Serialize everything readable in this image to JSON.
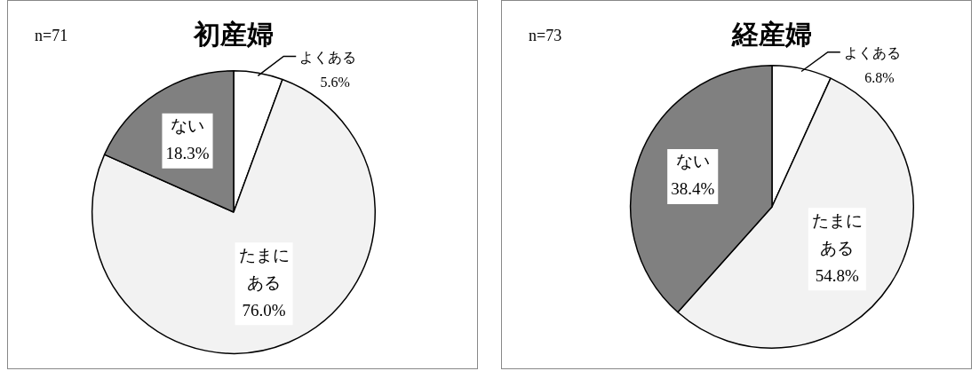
{
  "chart_data": [
    {
      "type": "pie",
      "title": "初産婦",
      "annotations": [
        "n=71"
      ],
      "categories": [
        "よくある",
        "たまにある",
        "ない"
      ],
      "values": [
        5.6,
        76.0,
        18.3
      ],
      "value_labels": [
        "5.6%",
        "76.0%",
        "18.3%"
      ],
      "colors": [
        "#ffffff",
        "#f2f2f2",
        "#808080"
      ]
    },
    {
      "type": "pie",
      "title": "経産婦",
      "annotations": [
        "n=73"
      ],
      "categories": [
        "よくある",
        "たまにある",
        "ない"
      ],
      "values": [
        6.8,
        54.8,
        38.4
      ],
      "value_labels": [
        "6.8%",
        "54.8%",
        "38.4%"
      ],
      "colors": [
        "#ffffff",
        "#f2f2f2",
        "#808080"
      ]
    }
  ]
}
